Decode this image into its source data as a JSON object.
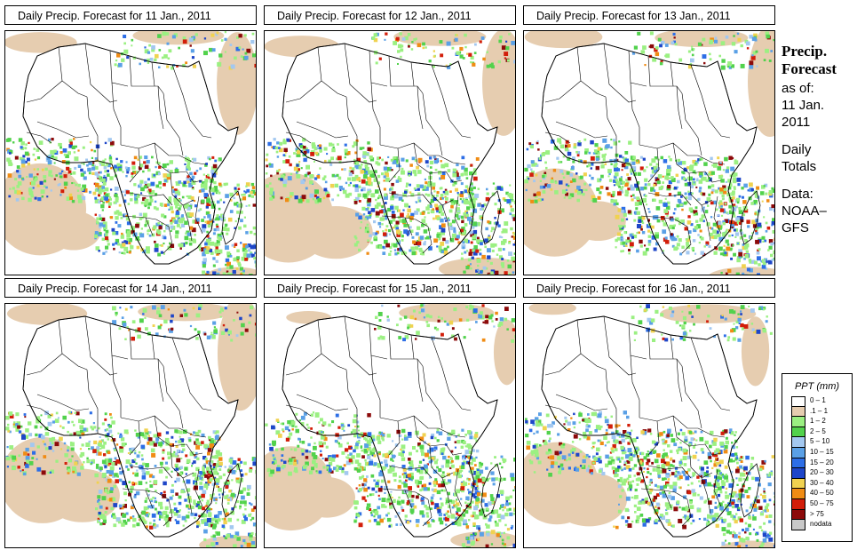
{
  "panels": [
    {
      "title": "Daily Precip. Forecast for  11 Jan., 2011"
    },
    {
      "title": "Daily Precip. Forecast for  12 Jan., 2011"
    },
    {
      "title": "Daily Precip. Forecast for  13 Jan., 2011"
    },
    {
      "title": "Daily Precip. Forecast for  14 Jan., 2011"
    },
    {
      "title": "Daily Precip. Forecast for  15 Jan., 2011"
    },
    {
      "title": "Daily Precip. Forecast for  16 Jan., 2011"
    }
  ],
  "side_info": {
    "heading_line1": "Precip.",
    "heading_line2": "Forecast",
    "asof_line1": "as of:",
    "asof_line2": "11 Jan.",
    "asof_line3": "2011",
    "totals_line1": "Daily",
    "totals_line2": "Totals",
    "data_line1": "Data:",
    "data_line2": "NOAA–",
    "data_line3": "GFS"
  },
  "legend": {
    "title": "PPT (mm)",
    "items": [
      {
        "label": "0 – 1",
        "color": "#ffffff"
      },
      {
        "label": ".1 – 1",
        "color": "#e6cdb0"
      },
      {
        "label": "1 – 2",
        "color": "#9bf082"
      },
      {
        "label": "2 – 5",
        "color": "#52d24c"
      },
      {
        "label": "5 – 10",
        "color": "#a3c8f0"
      },
      {
        "label": "10 – 15",
        "color": "#5aa0e6"
      },
      {
        "label": "15 – 20",
        "color": "#2d6ee6"
      },
      {
        "label": "20 – 30",
        "color": "#1e46c8"
      },
      {
        "label": "30 – 40",
        "color": "#f0d250"
      },
      {
        "label": "40 – 50",
        "color": "#f08c14"
      },
      {
        "label": "50 – 75",
        "color": "#d21e0a"
      },
      {
        "label": "> 75",
        "color": "#8c0a0a"
      },
      {
        "label": "nodata",
        "color": "#c8c8c8"
      }
    ]
  }
}
